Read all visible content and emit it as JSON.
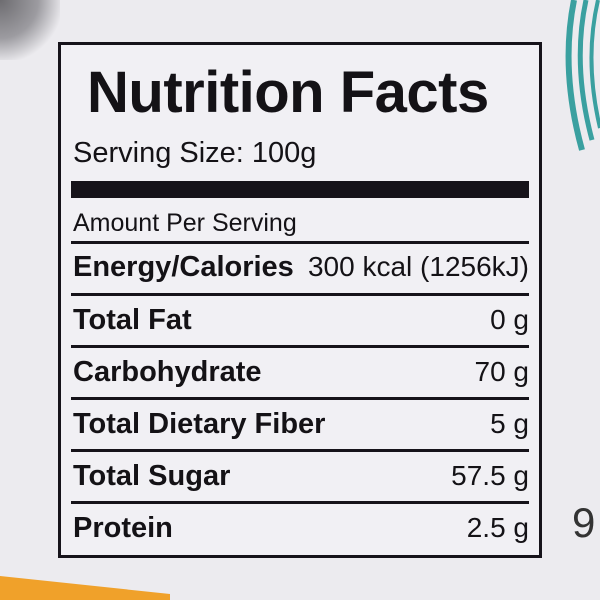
{
  "label": {
    "title": "Nutrition Facts",
    "serving_size": "Serving Size: 100g",
    "amount_per_serving": "Amount Per Serving",
    "rows": [
      {
        "name": "Energy/Calories",
        "value": "300 kcal (1256kJ)"
      },
      {
        "name": "Total Fat",
        "value": "0 g"
      },
      {
        "name": "Carbohydrate",
        "value": "70 g"
      },
      {
        "name": "Total Dietary Fiber",
        "value": "5 g"
      },
      {
        "name": "Total Sugar",
        "value": "57.5 g"
      },
      {
        "name": "Protein",
        "value": "2.5 g"
      }
    ]
  },
  "background": {
    "partial_text": "9",
    "accent_teal": "#3aa0a0",
    "accent_orange": "#f0a12a"
  }
}
